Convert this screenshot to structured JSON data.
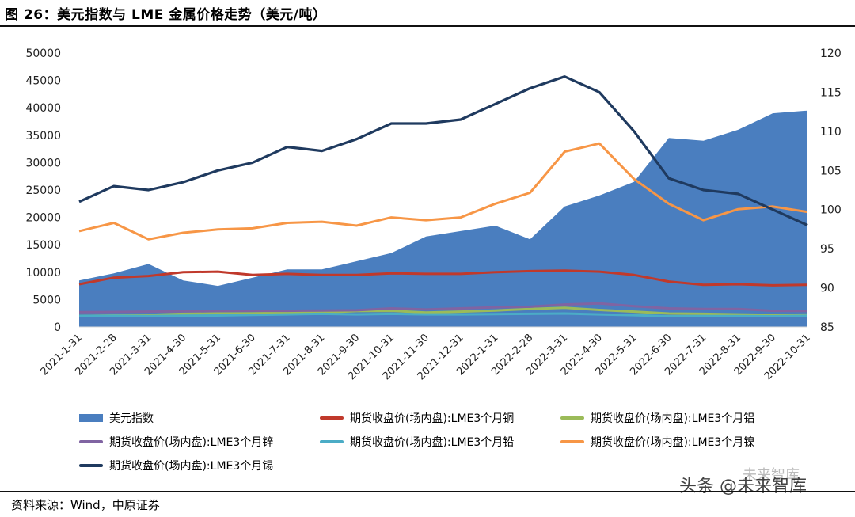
{
  "figure": {
    "title": "图 26：美元指数与 LME 金属价格走势（美元/吨）",
    "source": "资料来源：Wind，中原证券",
    "watermark": "头条 @未来智库",
    "watermark_logo": "未来智库"
  },
  "colors": {
    "usd_index": "#4a7ebf",
    "copper": "#c0392b",
    "aluminum": "#9bbb59",
    "zinc": "#8064a2",
    "lead": "#4bacc6",
    "nickel": "#f79646",
    "tin": "#1f3a5f"
  },
  "chart_data": {
    "type": "area",
    "x_labels": [
      "2021-1-31",
      "2021-2-28",
      "2021-3-31",
      "2021-4-30",
      "2021-5-31",
      "2021-6-30",
      "2021-7-31",
      "2021-8-31",
      "2021-9-30",
      "2021-10-31",
      "2021-11-30",
      "2021-12-31",
      "2022-1-31",
      "2022-2-28",
      "2022-3-31",
      "2022-4-30",
      "2022-5-31",
      "2022-6-30",
      "2022-7-31",
      "2022-8-31",
      "2022-9-30",
      "2022-10-31"
    ],
    "y_left": {
      "ticks": [
        "0",
        "5000",
        "10000",
        "15000",
        "20000",
        "25000",
        "30000",
        "35000",
        "40000",
        "45000",
        "50000"
      ],
      "range": [
        0,
        50000
      ]
    },
    "y_right": {
      "ticks": [
        "85",
        "90",
        "95",
        "100",
        "105",
        "110",
        "115",
        "120"
      ],
      "range": [
        85,
        120
      ]
    },
    "series": [
      {
        "name": "美元指数",
        "axis": "left",
        "style": "area",
        "values": [
          8500,
          9800,
          11500,
          8500,
          7500,
          9000,
          10500,
          10500,
          12000,
          13500,
          16500,
          17500,
          18500,
          16000,
          22000,
          24000,
          26500,
          34500,
          34000,
          36000,
          39000,
          39500
        ]
      },
      {
        "name": "期货收盘价(场内盘):LME3个月铜",
        "axis": "left",
        "style": "line",
        "values": [
          7800,
          9000,
          9300,
          10000,
          10100,
          9500,
          9700,
          9500,
          9500,
          9800,
          9700,
          9700,
          10000,
          10200,
          10300,
          10100,
          9500,
          8300,
          7700,
          7800,
          7600,
          7700
        ]
      },
      {
        "name": "期货收盘价(场内盘):LME3个月铝",
        "axis": "left",
        "style": "line",
        "values": [
          2000,
          2100,
          2200,
          2400,
          2450,
          2500,
          2600,
          2650,
          2900,
          2950,
          2650,
          2800,
          3000,
          3300,
          3500,
          3100,
          2800,
          2450,
          2400,
          2300,
          2200,
          2250
        ]
      },
      {
        "name": "期货收盘价(场内盘):LME3个月锌",
        "axis": "left",
        "style": "line",
        "values": [
          2700,
          2750,
          2800,
          2850,
          2900,
          2950,
          2950,
          3000,
          3050,
          3400,
          3200,
          3400,
          3600,
          3700,
          4100,
          4300,
          3800,
          3400,
          3300,
          3300,
          2950,
          2900
        ]
      },
      {
        "name": "期货收盘价(场内盘):LME3个月铅",
        "axis": "left",
        "style": "line",
        "values": [
          2000,
          2050,
          2000,
          2050,
          2100,
          2200,
          2300,
          2400,
          2300,
          2400,
          2300,
          2300,
          2350,
          2400,
          2450,
          2300,
          2150,
          1950,
          2000,
          2000,
          1950,
          2050
        ]
      },
      {
        "name": "期货收盘价(场内盘):LME3个月镍",
        "axis": "left",
        "style": "line",
        "values": [
          17500,
          19000,
          16000,
          17200,
          17800,
          18000,
          19000,
          19200,
          18500,
          20000,
          19500,
          20000,
          22500,
          24500,
          32000,
          33500,
          27000,
          22500,
          19500,
          21500,
          22000,
          21000
        ]
      },
      {
        "name": "期货收盘价(场内盘):LME3个月锡",
        "axis": "right",
        "style": "line",
        "values": [
          101,
          103,
          102.5,
          103.5,
          105,
          106,
          108,
          107.5,
          109,
          111,
          111,
          111.5,
          113.5,
          115.5,
          117,
          115,
          110,
          104,
          102.5,
          102,
          100,
          98
        ]
      }
    ],
    "legend": {
      "position": "bottom",
      "entries": [
        "美元指数",
        "期货收盘价(场内盘):LME3个月铜",
        "期货收盘价(场内盘):LME3个月铝",
        "期货收盘价(场内盘):LME3个月锌",
        "期货收盘价(场内盘):LME3个月铅",
        "期货收盘价(场内盘):LME3个月镍",
        "期货收盘价(场内盘):LME3个月锡"
      ]
    },
    "grid": false
  }
}
